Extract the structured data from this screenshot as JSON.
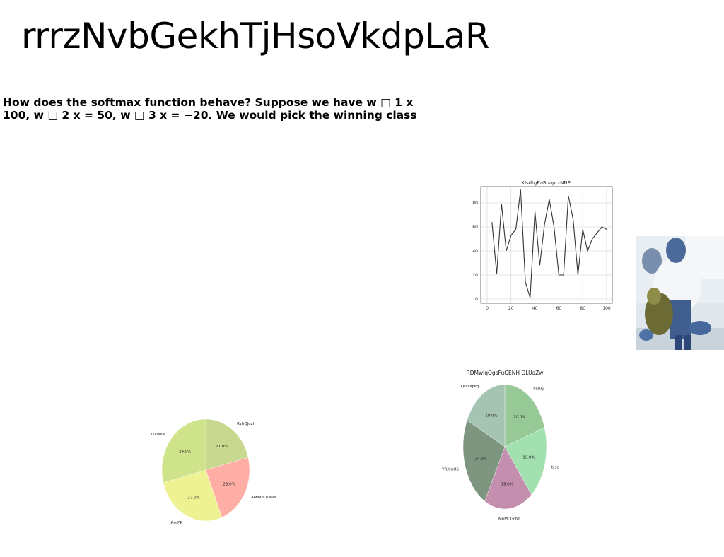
{
  "page": {
    "title": "rrrzNvbGekhTjHsoVkdpLaR",
    "question": "How does the softmax function behave? Suppose we have w □ 1 x 100, w □ 2 x = 50, w □ 3 x = −20. We would pick the winning class"
  },
  "chart_data": [
    {
      "type": "line",
      "title": "XIsdtgEaRoaprzNNP",
      "x": [
        4,
        8,
        12,
        16,
        20,
        24,
        28,
        32,
        36,
        40,
        44,
        48,
        52,
        56,
        60,
        64,
        68,
        72,
        76,
        80,
        84,
        88,
        92,
        96,
        100
      ],
      "series": [
        {
          "values": [
            64,
            21,
            79,
            40,
            53,
            58,
            91,
            14,
            1,
            73,
            28,
            62,
            83,
            60,
            20,
            20,
            86,
            66,
            20,
            58,
            40,
            50,
            55,
            60,
            58
          ]
        }
      ],
      "xlim": [
        0,
        100
      ],
      "ylim": [
        0,
        90
      ],
      "xticks": [
        "0",
        "20",
        "40",
        "60",
        "80",
        "100"
      ],
      "yticks": [
        "0",
        "20",
        "40",
        "60",
        "80"
      ],
      "grid": true,
      "line_color": "#333333"
    },
    {
      "type": "pie",
      "title": "",
      "labels": [
        "RyhQJozl",
        "AiwMhOOWe",
        "JBmZB",
        "OTWew"
      ],
      "values": [
        21.0,
        23.0,
        27.0,
        29.0
      ],
      "value_labels": [
        "21.0%",
        "23.0%",
        "27.0%",
        "29.0%"
      ],
      "colors": [
        "#c8d98f",
        "#ffaea6",
        "#eef293",
        "#cfe38a"
      ]
    },
    {
      "type": "pie",
      "title": "RDMwiqOgsFuGENH OLUaZw",
      "labels": [
        "kSIUy",
        "Ijjse",
        "MnMf Gcbo",
        "YRXmUS",
        "QfaOqwq"
      ],
      "values": [
        20.0,
        19.0,
        19.0,
        24.0,
        18.0
      ],
      "value_labels": [
        "20.0%",
        "19.0%",
        "19.0%",
        "24.0%",
        "18.0%"
      ],
      "colors": [
        "#97c996",
        "#a2e0b0",
        "#c48faf",
        "#7e9580",
        "#a6c4b2"
      ]
    }
  ],
  "photo": {
    "subject": "person in blue protective gear in a lab",
    "colors": [
      "#e8eef3",
      "#3d5a80",
      "#6b6a3a",
      "#ffffff"
    ]
  }
}
